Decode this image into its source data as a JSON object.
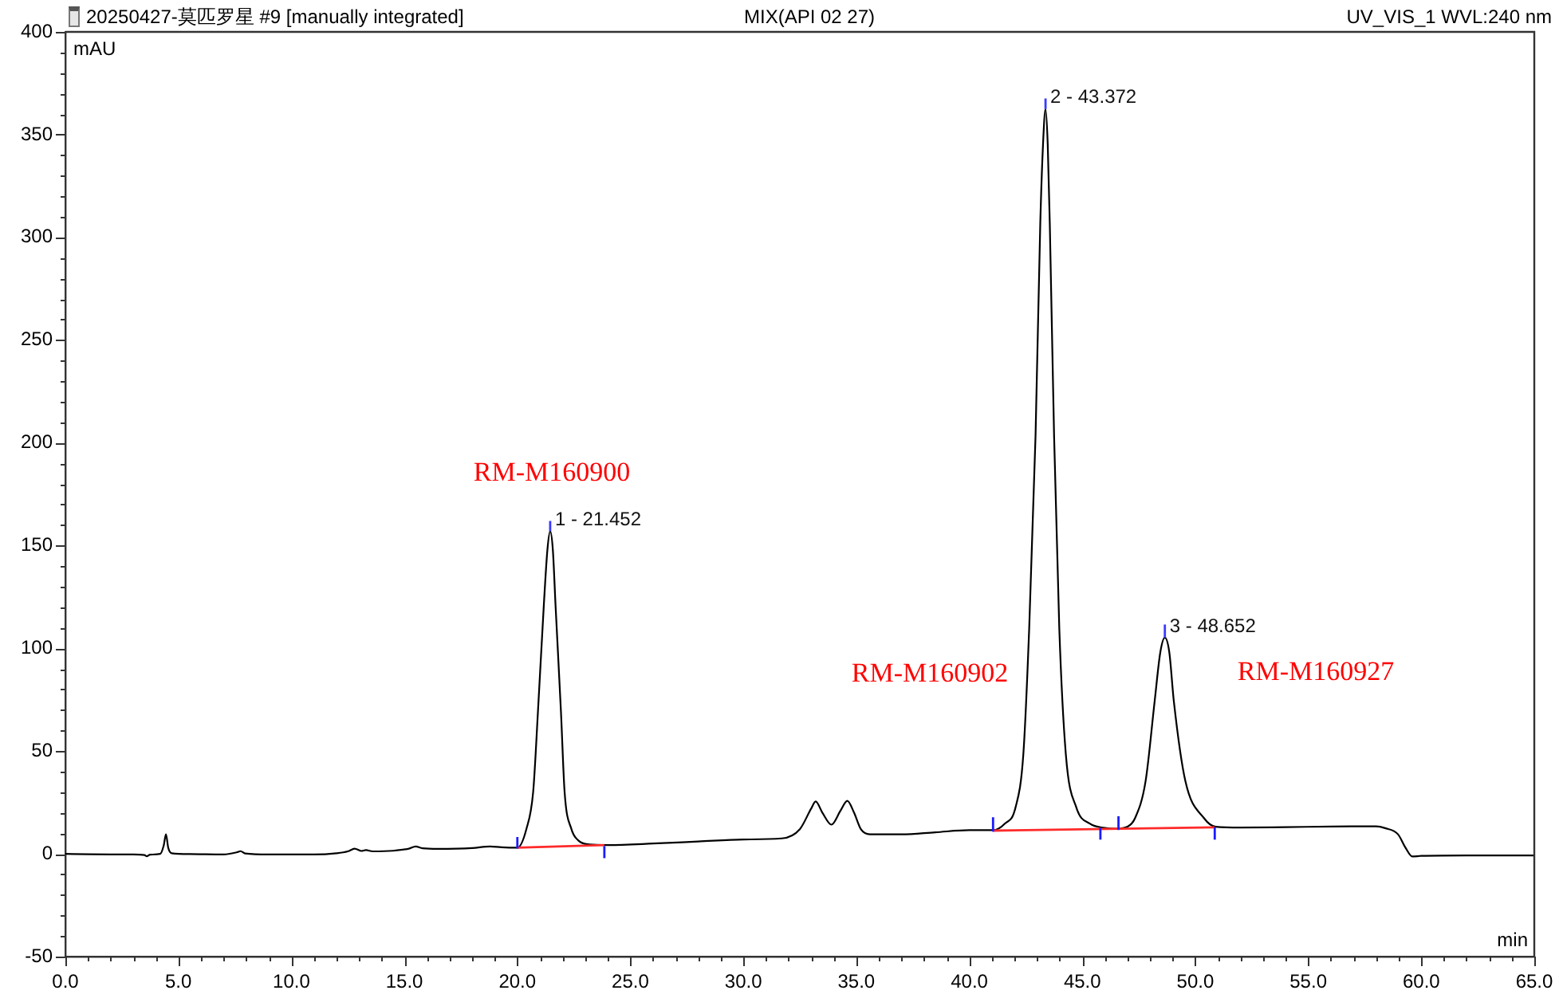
{
  "chart_data": {
    "type": "line",
    "title": "20250427-莫匹罗星 #9 [manually integrated]",
    "subtitle": "MIX(API 02 27)",
    "xlabel": "min",
    "ylabel": "mAU",
    "annotations": [
      "UV_VIS_1 WVL:240 nm",
      "RM-M160900",
      "RM-M160902",
      "RM-M160927",
      {
        "text": "1 - 21.452",
        "x": 21.452,
        "y": 157
      },
      {
        "text": "2 - 43.372",
        "x": 43.372,
        "y": 362.5
      },
      {
        "text": "3 - 48.652",
        "x": 48.652,
        "y": 105.2
      }
    ],
    "xlim": [
      0,
      65
    ],
    "ylim": [
      -50,
      400
    ],
    "xticks": [
      {
        "value": 0,
        "label": "0.0"
      },
      {
        "value": 1,
        "label": null
      },
      {
        "value": 2,
        "label": null
      },
      {
        "value": 3,
        "label": null
      },
      {
        "value": 4,
        "label": null
      },
      {
        "value": 5,
        "label": "5.0"
      },
      {
        "value": 6,
        "label": null
      },
      {
        "value": 7,
        "label": null
      },
      {
        "value": 8,
        "label": null
      },
      {
        "value": 9,
        "label": null
      },
      {
        "value": 10,
        "label": "10.0"
      },
      {
        "value": 11,
        "label": null
      },
      {
        "value": 12,
        "label": null
      },
      {
        "value": 13,
        "label": null
      },
      {
        "value": 14,
        "label": null
      },
      {
        "value": 15,
        "label": "15.0"
      },
      {
        "value": 16,
        "label": null
      },
      {
        "value": 17,
        "label": null
      },
      {
        "value": 18,
        "label": null
      },
      {
        "value": 19,
        "label": null
      },
      {
        "value": 20,
        "label": "20.0"
      },
      {
        "value": 21,
        "label": null
      },
      {
        "value": 22,
        "label": null
      },
      {
        "value": 23,
        "label": null
      },
      {
        "value": 24,
        "label": null
      },
      {
        "value": 25,
        "label": "25.0"
      },
      {
        "value": 26,
        "label": null
      },
      {
        "value": 27,
        "label": null
      },
      {
        "value": 28,
        "label": null
      },
      {
        "value": 29,
        "label": null
      },
      {
        "value": 30,
        "label": "30.0"
      },
      {
        "value": 31,
        "label": null
      },
      {
        "value": 32,
        "label": null
      },
      {
        "value": 33,
        "label": null
      },
      {
        "value": 34,
        "label": null
      },
      {
        "value": 35,
        "label": "35.0"
      },
      {
        "value": 36,
        "label": null
      },
      {
        "value": 37,
        "label": null
      },
      {
        "value": 38,
        "label": null
      },
      {
        "value": 39,
        "label": null
      },
      {
        "value": 40,
        "label": "40.0"
      },
      {
        "value": 41,
        "label": null
      },
      {
        "value": 42,
        "label": null
      },
      {
        "value": 43,
        "label": null
      },
      {
        "value": 44,
        "label": null
      },
      {
        "value": 45,
        "label": "45.0"
      },
      {
        "value": 46,
        "label": null
      },
      {
        "value": 47,
        "label": null
      },
      {
        "value": 48,
        "label": null
      },
      {
        "value": 49,
        "label": null
      },
      {
        "value": 50,
        "label": "50.0"
      },
      {
        "value": 51,
        "label": null
      },
      {
        "value": 52,
        "label": null
      },
      {
        "value": 53,
        "label": null
      },
      {
        "value": 54,
        "label": null
      },
      {
        "value": 55,
        "label": "55.0"
      },
      {
        "value": 56,
        "label": null
      },
      {
        "value": 57,
        "label": null
      },
      {
        "value": 58,
        "label": null
      },
      {
        "value": 59,
        "label": null
      },
      {
        "value": 60,
        "label": "60.0"
      },
      {
        "value": 61,
        "label": null
      },
      {
        "value": 62,
        "label": null
      },
      {
        "value": 63,
        "label": null
      },
      {
        "value": 64,
        "label": null
      },
      {
        "value": 65,
        "label": "65.0"
      }
    ],
    "yticks": [
      -50,
      {
        "value": -40,
        "label": null
      },
      {
        "value": -30,
        "label": null
      },
      {
        "value": -20,
        "label": null
      },
      {
        "value": -10,
        "label": null
      },
      0,
      {
        "value": 10,
        "label": null
      },
      {
        "value": 20,
        "label": null
      },
      {
        "value": 30,
        "label": null
      },
      {
        "value": 40,
        "label": null
      },
      50,
      {
        "value": 60,
        "label": null
      },
      {
        "value": 70,
        "label": null
      },
      {
        "value": 80,
        "label": null
      },
      {
        "value": 90,
        "label": null
      },
      100,
      {
        "value": 110,
        "label": null
      },
      {
        "value": 120,
        "label": null
      },
      {
        "value": 130,
        "label": null
      },
      {
        "value": 140,
        "label": null
      },
      150,
      {
        "value": 160,
        "label": null
      },
      {
        "value": 170,
        "label": null
      },
      {
        "value": 180,
        "label": null
      },
      {
        "value": 190,
        "label": null
      },
      200,
      {
        "value": 210,
        "label": null
      },
      {
        "value": 220,
        "label": null
      },
      {
        "value": 230,
        "label": null
      },
      {
        "value": 240,
        "label": null
      },
      250,
      {
        "value": 260,
        "label": null
      },
      {
        "value": 270,
        "label": null
      },
      {
        "value": 280,
        "label": null
      },
      {
        "value": 290,
        "label": null
      },
      300,
      {
        "value": 310,
        "label": null
      },
      {
        "value": 320,
        "label": null
      },
      {
        "value": 330,
        "label": null
      },
      {
        "value": 340,
        "label": null
      },
      350,
      {
        "value": 360,
        "label": null
      },
      {
        "value": 370,
        "label": null
      },
      {
        "value": 380,
        "label": null
      },
      {
        "value": 390,
        "label": null
      },
      400
    ],
    "series": [
      {
        "color": "#000000",
        "x": [
          0,
          1,
          2,
          3,
          3.5,
          3.6,
          3.75,
          4.2,
          4.35,
          4.45,
          4.55,
          4.7,
          5.5,
          7,
          7.6,
          7.75,
          7.95,
          9,
          10,
          11,
          12,
          12.5,
          12.8,
          13.1,
          13.3,
          13.6,
          14.5,
          15.2,
          15.5,
          15.8,
          16.5,
          18,
          18.8,
          19.3,
          20,
          20.4,
          20.7,
          20.91,
          21.17,
          21.33,
          21.452,
          21.57,
          21.69,
          21.93,
          22.09,
          22.39,
          22.7,
          23.2,
          24,
          26,
          28,
          30,
          31.7,
          32.5,
          33,
          33.2,
          33.5,
          33.9,
          34.3,
          34.6,
          34.9,
          35.2,
          35.6,
          37,
          38.5,
          40,
          41.05,
          41.57,
          42.04,
          42.39,
          42.65,
          42.93,
          43.14,
          43.26,
          43.372,
          43.47,
          43.56,
          43.75,
          43.98,
          44.27,
          44.74,
          45.33,
          46,
          46.5,
          47,
          47.33,
          47.8,
          48.2,
          48.45,
          48.652,
          48.85,
          49.05,
          49.56,
          50.39,
          50.9,
          52,
          54,
          56,
          58,
          58.4,
          58.97,
          59.3,
          59.6,
          60,
          62,
          65
        ],
        "values": [
          0,
          -0.2,
          -0.3,
          -0.3,
          -0.6,
          -1.2,
          -0.4,
          0,
          4,
          9.5,
          3,
          0.3,
          -0.1,
          -0.3,
          0.8,
          1.3,
          0.2,
          -0.3,
          -0.3,
          -0.3,
          0.3,
          1.2,
          2.5,
          1.4,
          1.8,
          1.2,
          1.5,
          2.5,
          3.6,
          2.7,
          2.4,
          2.8,
          3.6,
          3.2,
          3,
          12.1,
          30.2,
          69,
          120.8,
          148,
          157,
          148,
          120.8,
          69,
          30.2,
          12.1,
          6.5,
          4.6,
          4.3,
          5,
          6,
          7,
          7.5,
          12,
          22,
          25.5,
          20,
          14.2,
          21,
          25.8,
          20,
          12,
          9.5,
          9.5,
          10.5,
          11.5,
          11.5,
          14.7,
          22.4,
          48.5,
          110,
          203.5,
          307,
          345,
          362.5,
          345,
          307,
          203.5,
          110,
          48.5,
          22.4,
          14.7,
          12.6,
          12.2,
          13.2,
          17.3,
          35.4,
          74.2,
          98,
          105.2,
          98,
          74.2,
          35.4,
          17.3,
          13.2,
          12.8,
          13,
          13.3,
          13.4,
          12.5,
          9.5,
          3,
          -1.3,
          -1,
          -0.8,
          -0.8
        ]
      },
      {
        "color": "#ff2a2a",
        "x": [
          20.0,
          23.85
        ],
        "values": [
          3.0,
          4.3
        ]
      },
      {
        "color": "#ff2a2a",
        "x": [
          41.05,
          50.86
        ],
        "values": [
          11.3,
          12.9
        ]
      },
      {
        "color": "#1a1aff",
        "x": [
          20.0,
          20.0
        ],
        "values": [
          2.6,
          8.2
        ]
      },
      {
        "color": "#1a1aff",
        "x": [
          23.85,
          23.85
        ],
        "values": [
          -2.1,
          3.8
        ]
      },
      {
        "color": "#1a1aff",
        "x": [
          41.05,
          41.05
        ],
        "values": [
          10.8,
          17.8
        ]
      },
      {
        "color": "#1a1aff",
        "x": [
          45.8,
          45.8
        ],
        "values": [
          6.9,
          12.6
        ]
      },
      {
        "color": "#1a1aff",
        "x": [
          46.6,
          46.6
        ],
        "values": [
          11.6,
          18.3
        ]
      },
      {
        "color": "#1a1aff",
        "x": [
          50.86,
          50.86
        ],
        "values": [
          6.9,
          12.9
        ]
      },
      {
        "color": "#3a3aff",
        "x": [
          21.452,
          21.452
        ],
        "values": [
          157,
          162
        ]
      },
      {
        "color": "#3a3aff",
        "x": [
          43.372,
          43.372
        ],
        "values": [
          362.5,
          367.6
        ]
      },
      {
        "color": "#3a3aff",
        "x": [
          48.652,
          48.652
        ],
        "values": [
          105.2,
          111.6
        ]
      }
    ]
  }
}
